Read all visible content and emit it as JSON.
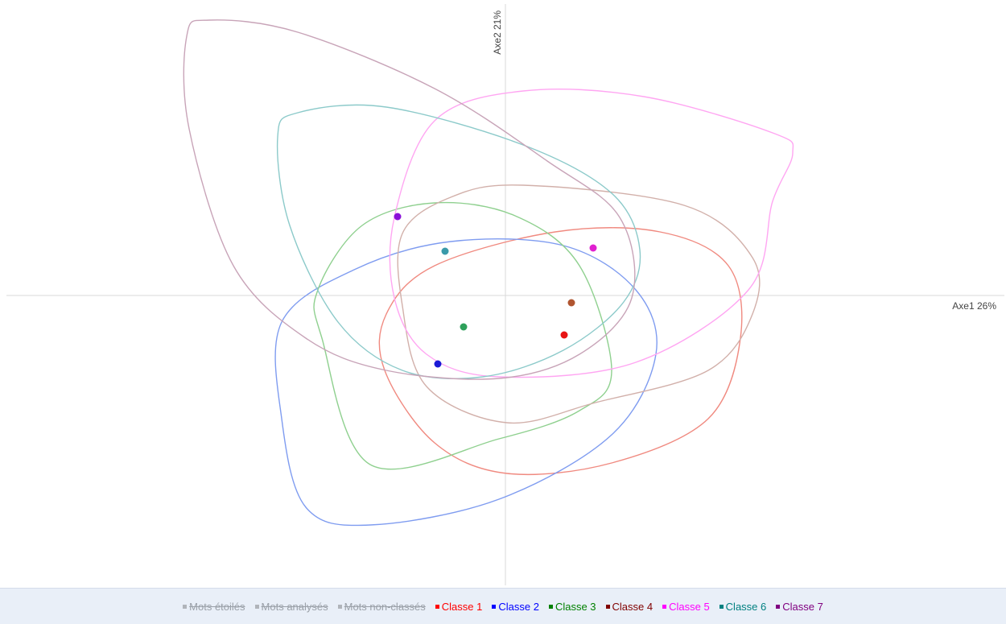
{
  "chart_data": {
    "type": "scatter",
    "x_label": "Axe1  26%",
    "y_label": "Axe2  21%",
    "xlim": [
      -620,
      620
    ],
    "ylim": [
      -360,
      362
    ],
    "inactive_legend": [
      "Mots étoilés",
      "Mots analysés",
      "Mots non-classés"
    ],
    "series": [
      {
        "name": "Classe 1",
        "color": "#e81414",
        "hull_color": "#f08a80",
        "x": [
          73
        ],
        "values": [
          -49
        ],
        "hull_x": [
          -148,
          -88,
          62,
          192,
          277,
          292,
          252,
          132,
          2,
          -88,
          -150
        ],
        "hull_y": [
          -23,
          37,
          79,
          79,
          37,
          -53,
          -153,
          -208,
          -221,
          -183,
          -93
        ]
      },
      {
        "name": "Classe 2",
        "color": "#1a1ad6",
        "hull_color": "#7f9cf0",
        "x": [
          -84
        ],
        "values": [
          -85
        ],
        "hull_x": [
          -278,
          -188,
          -68,
          72,
          162,
          187,
          132,
          -8,
          -168,
          -248,
          -278
        ],
        "hull_y": [
          -33,
          32,
          67,
          62,
          7,
          -73,
          -173,
          -253,
          -285,
          -263,
          -153
        ]
      },
      {
        "name": "Classe 3",
        "color": "#2ea05a",
        "hull_color": "#8fd08f",
        "x": [
          -52
        ],
        "values": [
          -39
        ],
        "hull_x": [
          -233,
          -178,
          -88,
          12,
          92,
          132,
          92,
          -8,
          -168,
          -228
        ],
        "hull_y": [
          7,
          87,
          115,
          99,
          37,
          -93,
          -143,
          -178,
          -210,
          -53
        ]
      },
      {
        "name": "Classe 4",
        "color": "#b05530",
        "hull_color": "#d2b0aa",
        "x": [
          82
        ],
        "values": [
          -9
        ],
        "hull_x": [
          -128,
          -68,
          22,
          222,
          307,
          307,
          252,
          112,
          2,
          -98,
          -128
        ],
        "hull_y": [
          77,
          122,
          137,
          112,
          47,
          -23,
          -93,
          -133,
          -158,
          -113,
          -13
        ]
      },
      {
        "name": "Classe 5",
        "color": "#e020d0",
        "hull_color": "#ffa6f2",
        "x": [
          109
        ],
        "values": [
          59
        ],
        "hull_x": [
          -138,
          -88,
          22,
          172,
          332,
          357,
          332,
          302,
          162,
          -8,
          -98,
          -138
        ],
        "hull_y": [
          97,
          217,
          254,
          247,
          202,
          177,
          117,
          7,
          -83,
          -101,
          -73,
          -3
        ]
      },
      {
        "name": "Classe 6",
        "color": "#3a9aaa",
        "hull_color": "#8ccaca",
        "x": [
          -75
        ],
        "values": [
          55
        ],
        "hull_x": [
          -283,
          -258,
          -148,
          22,
          132,
          167,
          147,
          72,
          -28,
          -128,
          -208,
          -268
        ],
        "hull_y": [
          197,
          227,
          234,
          187,
          127,
          57,
          -8,
          -68,
          -101,
          -93,
          -33,
          87
        ]
      },
      {
        "name": "Classe 7",
        "color": "#8a10d8",
        "hull_color": "#c8a4b8",
        "x": [
          -134
        ],
        "values": [
          98
        ],
        "hull_x": [
          -396,
          -368,
          -258,
          -88,
          52,
          142,
          157,
          92,
          -8,
          -148,
          -248,
          -338,
          -393
        ],
        "hull_y": [
          322,
          342,
          327,
          257,
          167,
          97,
          -3,
          -73,
          -103,
          -93,
          -53,
          37,
          207
        ]
      }
    ],
    "legend_colors": [
      "#ff0000",
      "#0000ff",
      "#008000",
      "#800000",
      "#ff00ff",
      "#008080",
      "#800080"
    ]
  }
}
